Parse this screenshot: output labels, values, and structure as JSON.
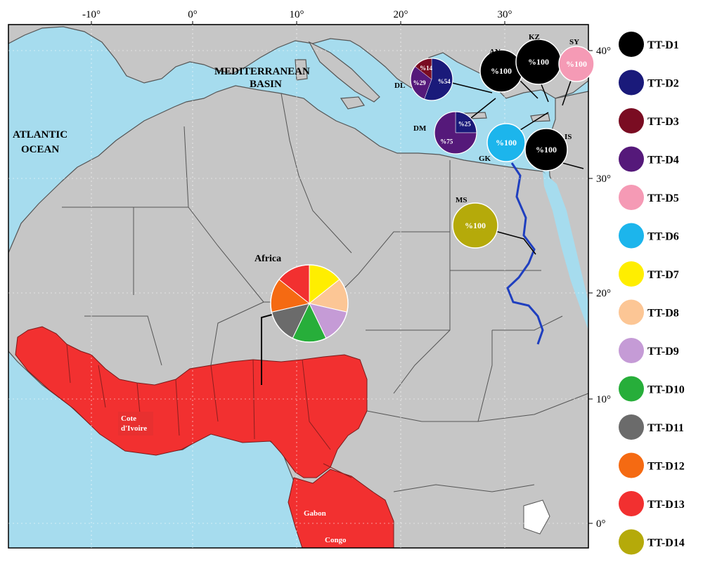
{
  "map": {
    "lon_ticks": [
      "-10°",
      "0°",
      "10°",
      "20°",
      "30°"
    ],
    "lat_ticks": [
      "40°",
      "30°",
      "20°",
      "10°",
      "0°"
    ],
    "sea_labels": {
      "mediterranean_line1": "MEDITERRANEAN",
      "mediterranean_line2": "BASIN",
      "atlantic_line1": "ATLANTIC",
      "atlantic_line2": "OCEAN"
    },
    "region_labels": {
      "africa": "Africa",
      "cote_line1": "Cote",
      "cote_line2": "d'Ivoire",
      "gabon": "Gabon",
      "congo": "Congo"
    },
    "colors": {
      "sea": "#a6dcee",
      "land": "#c6c6c6",
      "border": "#555555",
      "highlight": "#f23030",
      "nile": "#1f3fbf"
    },
    "sites": [
      {
        "code": "AN",
        "slices": [
          {
            "haplotype": "TT-D1",
            "percent": 100,
            "label": "%100"
          }
        ]
      },
      {
        "code": "KZ",
        "slices": [
          {
            "haplotype": "TT-D1",
            "percent": 100,
            "label": "%100"
          }
        ]
      },
      {
        "code": "SY",
        "slices": [
          {
            "haplotype": "TT-D5",
            "percent": 100,
            "label": "%100"
          }
        ]
      },
      {
        "code": "DL",
        "slices": [
          {
            "haplotype": "TT-D2",
            "percent": 54,
            "label": "%54"
          },
          {
            "haplotype": "TT-D4",
            "percent": 29,
            "label": "%29"
          },
          {
            "haplotype": "TT-D3",
            "percent": 14,
            "label": "%14"
          }
        ]
      },
      {
        "code": "DM",
        "slices": [
          {
            "haplotype": "TT-D2",
            "percent": 25,
            "label": "%25"
          },
          {
            "haplotype": "TT-D4",
            "percent": 75,
            "label": "%75"
          }
        ]
      },
      {
        "code": "GK",
        "slices": [
          {
            "haplotype": "TT-D6",
            "percent": 100,
            "label": "%100"
          }
        ]
      },
      {
        "code": "IS",
        "slices": [
          {
            "haplotype": "TT-D1",
            "percent": 100,
            "label": "%100"
          }
        ]
      },
      {
        "code": "MS",
        "slices": [
          {
            "haplotype": "TT-D14",
            "percent": 100,
            "label": "%100"
          }
        ]
      }
    ],
    "africa_pie": [
      "TT-D7",
      "TT-D8",
      "TT-D9",
      "TT-D10",
      "TT-D11",
      "TT-D12",
      "TT-D13"
    ]
  },
  "legend": [
    {
      "label": "TT-D1",
      "color": "#000000"
    },
    {
      "label": "TT-D2",
      "color": "#1a1a7a"
    },
    {
      "label": "TT-D3",
      "color": "#7a0c22"
    },
    {
      "label": "TT-D4",
      "color": "#55197a"
    },
    {
      "label": "TT-D5",
      "color": "#f59ab5"
    },
    {
      "label": "TT-D6",
      "color": "#1cb5ec"
    },
    {
      "label": "TT-D7",
      "color": "#ffee00"
    },
    {
      "label": "TT-D8",
      "color": "#fcc695"
    },
    {
      "label": "TT-D9",
      "color": "#c59bd6"
    },
    {
      "label": "TT-D10",
      "color": "#27ae3a"
    },
    {
      "label": "TT-D11",
      "color": "#6b6b6b"
    },
    {
      "label": "TT-D12",
      "color": "#f56a12"
    },
    {
      "label": "TT-D13",
      "color": "#f23030"
    },
    {
      "label": "TT-D14",
      "color": "#b5aa0a"
    }
  ]
}
